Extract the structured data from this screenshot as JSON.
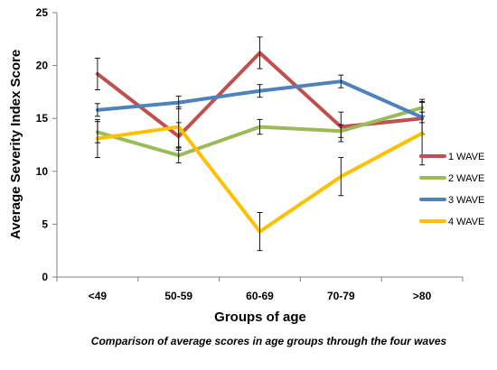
{
  "chart_data": {
    "type": "line",
    "title": "",
    "xlabel": "Groups of age",
    "ylabel": "Average Severity Index Score",
    "categories": [
      "<49",
      "50-59",
      "60-69",
      "70-79",
      ">80"
    ],
    "ylim": [
      0,
      25
    ],
    "yticks": [
      0,
      5,
      10,
      15,
      20,
      25
    ],
    "legend_position": "right",
    "grid": false,
    "series": [
      {
        "name": "1 WAVE",
        "color": "#c0504d",
        "values": [
          19.2,
          13.3,
          21.2,
          14.2,
          15.0
        ],
        "error": [
          1.5,
          1.3,
          1.5,
          1.4,
          1.5
        ]
      },
      {
        "name": "2 WAVE",
        "color": "#9bbb59",
        "values": [
          13.7,
          11.5,
          14.2,
          13.8,
          16.0
        ],
        "error": [
          1.0,
          0.7,
          0.7,
          0.6,
          0.8
        ]
      },
      {
        "name": "3 WAVE",
        "color": "#4f81bd",
        "values": [
          15.8,
          16.5,
          17.6,
          18.5,
          15.1
        ],
        "error": [
          0.6,
          0.6,
          0.6,
          0.6,
          0.5
        ]
      },
      {
        "name": "4 WAVE",
        "color": "#ffc000",
        "values": [
          13.1,
          14.2,
          4.3,
          9.5,
          13.6
        ],
        "error": [
          1.8,
          1.9,
          1.8,
          1.8,
          3.0
        ]
      }
    ]
  },
  "caption": "Comparison of average scores in age groups through the four waves"
}
